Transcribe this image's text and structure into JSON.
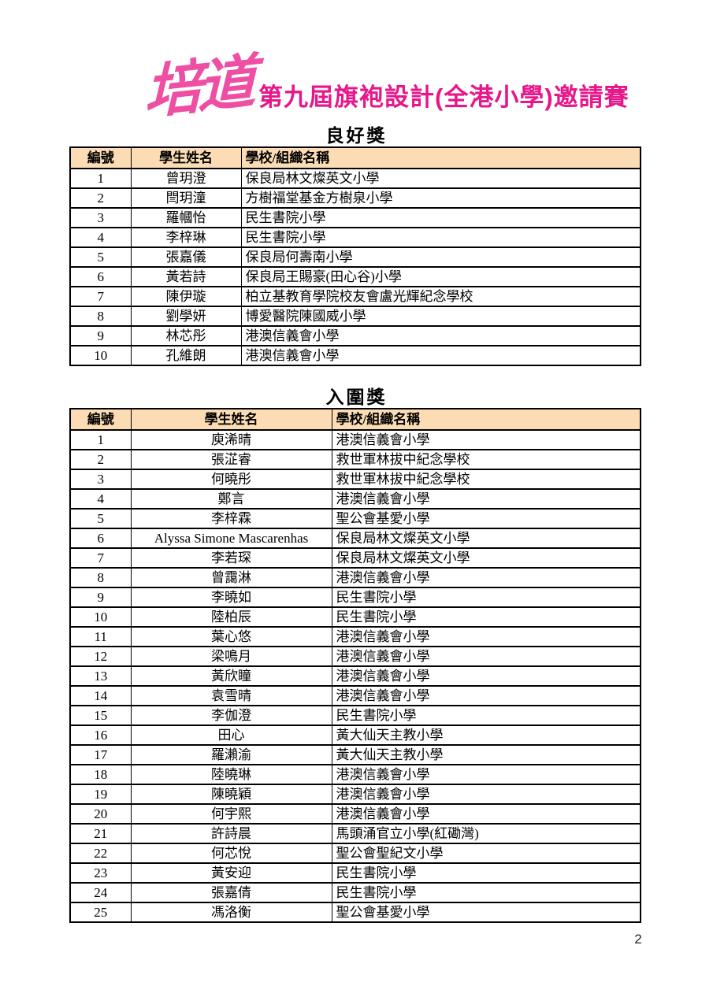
{
  "header": {
    "logo_text": "培道",
    "title": "第九屆旗袍設計(全港小學)邀請賽",
    "logo_color": "#ee4fa3",
    "title_color": "#e7168b"
  },
  "colors": {
    "table_header_bg": "#fbdcb4",
    "table_border": "#000000",
    "page_bg": "#ffffff"
  },
  "tables": [
    {
      "title": "良好獎",
      "columns": [
        "編號",
        "學生姓名",
        "學校/組織名稱"
      ],
      "rows": [
        [
          "1",
          "曾玥澄",
          "保良局林文燦英文小學"
        ],
        [
          "2",
          "閆玥潼",
          "方樹福堂基金方樹泉小學"
        ],
        [
          "3",
          "羅幗怡",
          "民生書院小學"
        ],
        [
          "4",
          "李梓琳",
          "民生書院小學"
        ],
        [
          "5",
          "張嘉儀",
          "保良局何壽南小學"
        ],
        [
          "6",
          "黃若詩",
          "保良局王賜豪(田心谷)小學"
        ],
        [
          "7",
          "陳伊璇",
          "柏立基教育學院校友會盧光輝紀念學校"
        ],
        [
          "8",
          "劉學妍",
          "博愛醫院陳國威小學"
        ],
        [
          "9",
          "林芯彤",
          "港澳信義會小學"
        ],
        [
          "10",
          "孔維朗",
          "港澳信義會小學"
        ]
      ]
    },
    {
      "title": "入圍獎",
      "columns": [
        "編號",
        "學生姓名",
        "學校/組織名稱"
      ],
      "rows": [
        [
          "1",
          "庾浠晴",
          "港澳信義會小學"
        ],
        [
          "2",
          "張淽睿",
          "救世軍林拔中紀念學校"
        ],
        [
          "3",
          "何曉彤",
          "救世軍林拔中紀念學校"
        ],
        [
          "4",
          "鄭言",
          "港澳信義會小學"
        ],
        [
          "5",
          "李梓霖",
          "聖公會基愛小學"
        ],
        [
          "6",
          "Alyssa Simone Mascarenhas",
          "保良局林文燦英文小學"
        ],
        [
          "7",
          "李若琛",
          "保良局林文燦英文小學"
        ],
        [
          "8",
          "曾靄淋",
          "港澳信義會小學"
        ],
        [
          "9",
          "李曉如",
          "民生書院小學"
        ],
        [
          "10",
          "陸柏辰",
          "民生書院小學"
        ],
        [
          "11",
          "葉心悠",
          "港澳信義會小學"
        ],
        [
          "12",
          "梁鳴月",
          "港澳信義會小學"
        ],
        [
          "13",
          "黃欣瞳",
          "港澳信義會小學"
        ],
        [
          "14",
          "袁雪晴",
          "港澳信義會小學"
        ],
        [
          "15",
          "李伽澄",
          "民生書院小學"
        ],
        [
          "16",
          "田心",
          "黃大仙天主教小學"
        ],
        [
          "17",
          "羅瀨渝",
          "黃大仙天主教小學"
        ],
        [
          "18",
          "陸曉琳",
          "港澳信義會小學"
        ],
        [
          "19",
          "陳曉穎",
          "港澳信義會小學"
        ],
        [
          "20",
          "何宇熙",
          "港澳信義會小學"
        ],
        [
          "21",
          "許詩晨",
          "馬頭涌官立小學(紅磡灣)"
        ],
        [
          "22",
          "何芯悅",
          "聖公會聖紀文小學"
        ],
        [
          "23",
          "黃安迎",
          "民生書院小學"
        ],
        [
          "24",
          "張嘉倩",
          "民生書院小學"
        ],
        [
          "25",
          "馮洛衡",
          "聖公會基愛小學"
        ]
      ]
    }
  ],
  "footer": {
    "page_number": "2"
  }
}
